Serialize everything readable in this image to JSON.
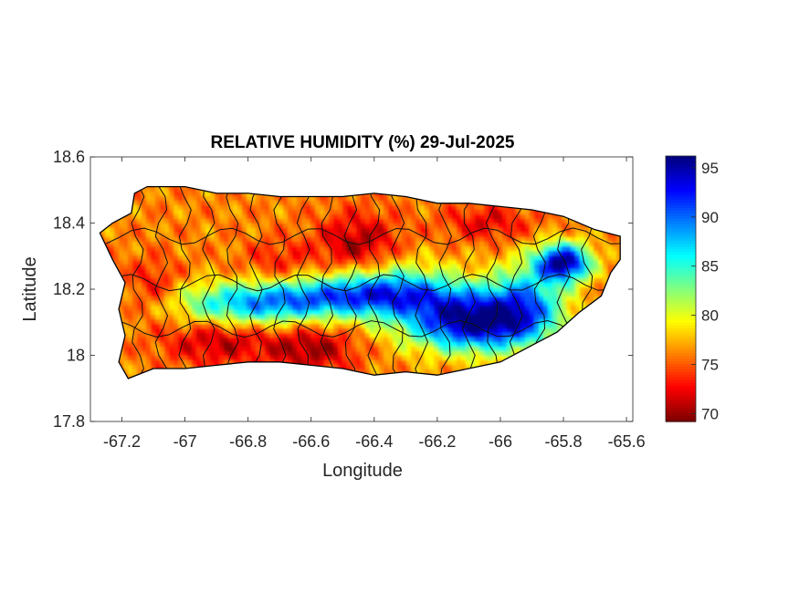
{
  "title": "RELATIVE HUMIDITY (%) 29-Jul-2025",
  "xlabel": "Longitude",
  "ylabel": "Latitude",
  "x_ticks": [
    "-67.2",
    "-67",
    "-66.8",
    "-66.6",
    "-66.4",
    "-66.2",
    "-66",
    "-65.8",
    "-65.6"
  ],
  "x_tick_values": [
    -67.2,
    -67.0,
    -66.8,
    -66.6,
    -66.4,
    -66.2,
    -66.0,
    -65.8,
    -65.6
  ],
  "y_ticks": [
    "18.6",
    "18.4",
    "18.2",
    "18",
    "17.8"
  ],
  "y_tick_values": [
    18.6,
    18.4,
    18.2,
    18.0,
    17.8
  ],
  "xlim": [
    -67.3,
    -65.58
  ],
  "ylim": [
    17.8,
    18.6
  ],
  "colorbar": {
    "ticks": [
      "95",
      "90",
      "85",
      "80",
      "75",
      "70"
    ],
    "tick_values": [
      95,
      90,
      85,
      80,
      75,
      70
    ],
    "range": [
      69.2,
      96.2
    ],
    "colormap": "jet"
  },
  "island_outline": [
    [
      -67.27,
      18.37
    ],
    [
      -67.23,
      18.4
    ],
    [
      -67.17,
      18.43
    ],
    [
      -67.16,
      18.49
    ],
    [
      -67.12,
      18.51
    ],
    [
      -67.0,
      18.51
    ],
    [
      -66.9,
      18.49
    ],
    [
      -66.8,
      18.49
    ],
    [
      -66.7,
      18.48
    ],
    [
      -66.6,
      18.48
    ],
    [
      -66.5,
      18.48
    ],
    [
      -66.4,
      18.49
    ],
    [
      -66.3,
      18.48
    ],
    [
      -66.2,
      18.46
    ],
    [
      -66.1,
      18.46
    ],
    [
      -66.0,
      18.45
    ],
    [
      -65.9,
      18.44
    ],
    [
      -65.8,
      18.42
    ],
    [
      -65.7,
      18.38
    ],
    [
      -65.62,
      18.36
    ],
    [
      -65.62,
      18.29
    ],
    [
      -65.65,
      18.25
    ],
    [
      -65.68,
      18.18
    ],
    [
      -65.75,
      18.13
    ],
    [
      -65.82,
      18.07
    ],
    [
      -65.9,
      18.03
    ],
    [
      -66.0,
      17.98
    ],
    [
      -66.1,
      17.96
    ],
    [
      -66.2,
      17.94
    ],
    [
      -66.3,
      17.95
    ],
    [
      -66.4,
      17.94
    ],
    [
      -66.5,
      17.96
    ],
    [
      -66.6,
      17.97
    ],
    [
      -66.7,
      17.98
    ],
    [
      -66.8,
      17.98
    ],
    [
      -66.9,
      17.97
    ],
    [
      -67.0,
      17.96
    ],
    [
      -67.1,
      17.96
    ],
    [
      -67.18,
      17.93
    ],
    [
      -67.21,
      17.98
    ],
    [
      -67.19,
      18.06
    ],
    [
      -67.21,
      18.14
    ],
    [
      -67.19,
      18.22
    ],
    [
      -67.23,
      18.29
    ],
    [
      -67.27,
      18.37
    ]
  ],
  "humidity_field": {
    "base": 76,
    "features": [
      {
        "lon": -66.55,
        "lat": 18.18,
        "sx": 0.28,
        "sy": 0.04,
        "amp": 10
      },
      {
        "lon": -66.78,
        "lat": 18.14,
        "sx": 0.18,
        "sy": 0.04,
        "amp": 8
      },
      {
        "lon": -66.35,
        "lat": 18.2,
        "sx": 0.15,
        "sy": 0.06,
        "amp": 9
      },
      {
        "lon": -66.08,
        "lat": 18.1,
        "sx": 0.15,
        "sy": 0.06,
        "amp": 20
      },
      {
        "lon": -65.92,
        "lat": 18.17,
        "sx": 0.08,
        "sy": 0.08,
        "amp": 9
      },
      {
        "lon": -65.8,
        "lat": 18.28,
        "sx": 0.06,
        "sy": 0.04,
        "amp": 20
      },
      {
        "lon": -66.45,
        "lat": 18.33,
        "sx": 0.09,
        "sy": 0.07,
        "amp": -6
      },
      {
        "lon": -66.6,
        "lat": 18.02,
        "sx": 0.1,
        "sy": 0.05,
        "amp": -6
      },
      {
        "lon": -66.9,
        "lat": 18.04,
        "sx": 0.12,
        "sy": 0.05,
        "amp": -5
      },
      {
        "lon": -67.1,
        "lat": 18.2,
        "sx": 0.06,
        "sy": 0.06,
        "amp": -4
      },
      {
        "lon": -66.04,
        "lat": 18.4,
        "sx": 0.1,
        "sy": 0.04,
        "amp": -4
      },
      {
        "lon": -66.7,
        "lat": 18.28,
        "sx": 0.08,
        "sy": 0.05,
        "amp": -3
      }
    ]
  }
}
